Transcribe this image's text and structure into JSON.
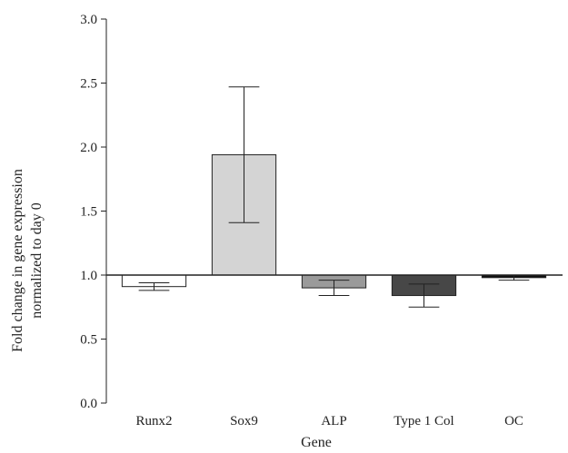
{
  "chart_data": {
    "type": "bar",
    "xlabel": "Gene",
    "ylabel_lines": [
      "Fold change in gene expression",
      "normalized to day 0"
    ],
    "ylim": [
      0,
      3.0
    ],
    "yticks": [
      "0.0",
      "0.5",
      "1.0",
      "1.5",
      "2.0",
      "2.5",
      "3.0"
    ],
    "baseline": 1.0,
    "grid": false,
    "categories": [
      "Runx2",
      "Sox9",
      "ALP",
      "Type 1 Col",
      "OC"
    ],
    "values": [
      0.91,
      1.94,
      0.9,
      0.84,
      0.98
    ],
    "errors": [
      0.03,
      0.53,
      0.06,
      0.09,
      0.02
    ],
    "colors": [
      "#ffffff",
      "#d4d4d4",
      "#9a9a9a",
      "#474747",
      "#111111"
    ]
  }
}
